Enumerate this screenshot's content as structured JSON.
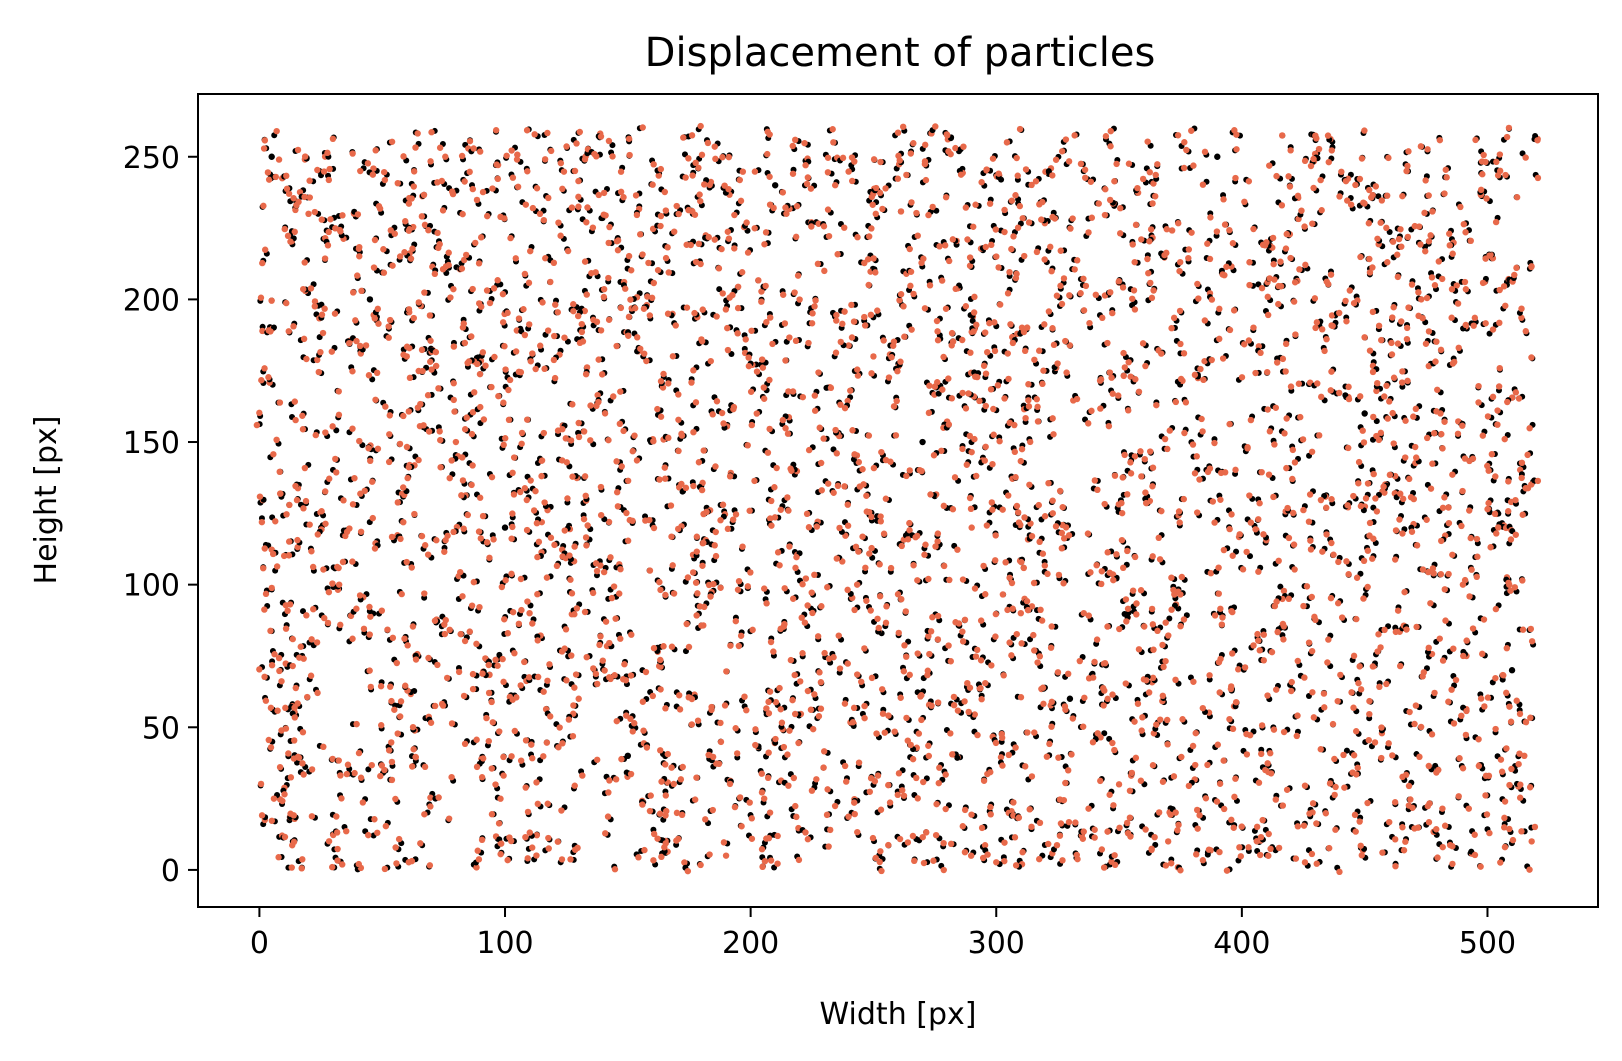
{
  "chart_data": {
    "type": "scatter",
    "title": "Displacement of particles",
    "xlabel": "Width [px]",
    "ylabel": "Height [px]",
    "xlim": [
      -25,
      545
    ],
    "ylim": [
      -13,
      272
    ],
    "xticks": [
      0,
      100,
      200,
      300,
      400,
      500
    ],
    "yticks": [
      0,
      50,
      100,
      150,
      200,
      250
    ],
    "grid": false,
    "particle_region": {
      "x": [
        0,
        520
      ],
      "y": [
        0,
        260
      ]
    },
    "approx_particle_count": 3200,
    "series": [
      {
        "color": "#000000",
        "marker": "dot"
      },
      {
        "color": "#e8694a",
        "marker": "dot"
      }
    ],
    "points_sample": [
      [
        5,
        250,
        0
      ],
      [
        8,
        249,
        1
      ],
      [
        20,
        230,
        1
      ],
      [
        45,
        200,
        0
      ],
      [
        60,
        180,
        1
      ],
      [
        80,
        150,
        1
      ],
      [
        100,
        120,
        0
      ],
      [
        110,
        90,
        1
      ],
      [
        130,
        60,
        1
      ],
      [
        150,
        40,
        0
      ],
      [
        170,
        20,
        1
      ],
      [
        190,
        5,
        1
      ],
      [
        210,
        240,
        0
      ],
      [
        230,
        210,
        1
      ],
      [
        250,
        180,
        1
      ],
      [
        270,
        150,
        0
      ],
      [
        290,
        120,
        1
      ],
      [
        310,
        90,
        1
      ],
      [
        330,
        60,
        0
      ],
      [
        350,
        30,
        1
      ],
      [
        370,
        10,
        1
      ],
      [
        390,
        250,
        0
      ],
      [
        410,
        220,
        1
      ],
      [
        430,
        190,
        1
      ],
      [
        450,
        160,
        0
      ],
      [
        470,
        130,
        1
      ],
      [
        490,
        100,
        1
      ],
      [
        510,
        70,
        0
      ],
      [
        515,
        40,
        1
      ],
      [
        518,
        10,
        1
      ]
    ]
  }
}
